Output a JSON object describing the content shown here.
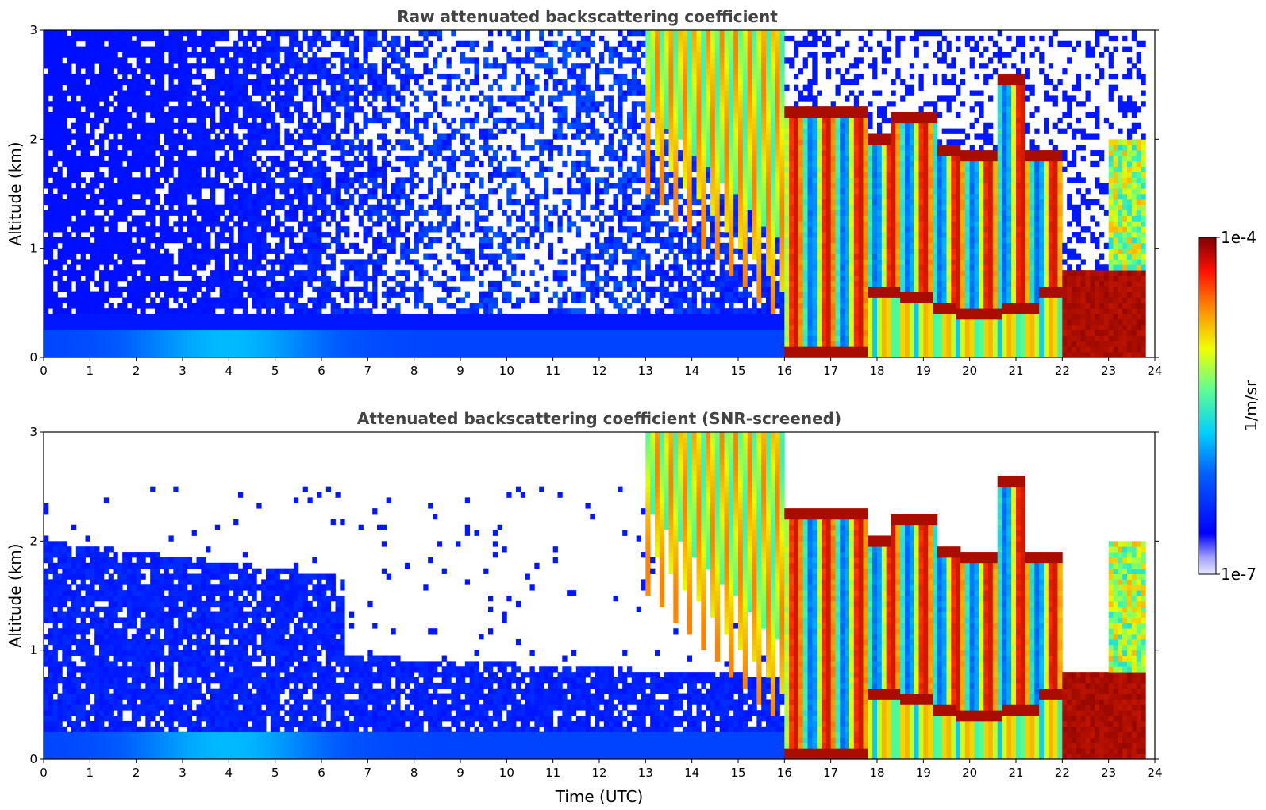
{
  "chart_data": [
    {
      "type": "heatmap",
      "title": "Raw attenuated backscattering coefficient",
      "xlabel": "",
      "ylabel": "Altitude (km)",
      "xlim": [
        0,
        24
      ],
      "ylim": [
        0,
        3
      ],
      "x_ticks": [
        "0",
        "1",
        "2",
        "3",
        "4",
        "5",
        "6",
        "7",
        "8",
        "9",
        "10",
        "11",
        "12",
        "13",
        "14",
        "15",
        "16",
        "17",
        "18",
        "19",
        "20",
        "21",
        "22",
        "23",
        "24"
      ],
      "y_ticks": [
        "0",
        "1",
        "2",
        "3"
      ],
      "colorscale": "jet",
      "zscale": "log",
      "zlim": [
        1e-07,
        0.0001
      ],
      "screened": false,
      "regions": [
        {
          "x": [
            0,
            13
          ],
          "y": [
            0,
            0.3
          ],
          "level": "high noise-floor, blue"
        },
        {
          "x": [
            0,
            13
          ],
          "y": [
            0.3,
            3
          ],
          "level": "noise, blue speckle"
        },
        {
          "x": [
            13,
            16
          ],
          "y": [
            0,
            3
          ],
          "level": "cirrus fall-streaks from 3 km, green-orange"
        },
        {
          "x": [
            16,
            17.8
          ],
          "y": [
            0,
            2.3
          ],
          "level": "dense cloud, orange-red"
        },
        {
          "x": [
            17.8,
            22
          ],
          "y": [
            0.3,
            2.3
          ],
          "level": "convective cloud towers, green-red"
        },
        {
          "x": [
            22,
            23.8
          ],
          "y": [
            0,
            0.8
          ],
          "level": "boundary layer, dark red"
        },
        {
          "x": [
            22,
            23.8
          ],
          "y": [
            0.8,
            2.1
          ],
          "level": "cloud tops, cyan-yellow"
        }
      ]
    },
    {
      "type": "heatmap",
      "title": "Attenuated backscattering coefficient (SNR-screened)",
      "xlabel": "Time (UTC)",
      "ylabel": "Altitude (km)",
      "xlim": [
        0,
        24
      ],
      "ylim": [
        0,
        3
      ],
      "x_ticks": [
        "0",
        "1",
        "2",
        "3",
        "4",
        "5",
        "6",
        "7",
        "8",
        "9",
        "10",
        "11",
        "12",
        "13",
        "14",
        "15",
        "16",
        "17",
        "18",
        "19",
        "20",
        "21",
        "22",
        "23",
        "24"
      ],
      "y_ticks": [
        "0",
        "1",
        "2",
        "3"
      ],
      "colorscale": "jet",
      "zscale": "log",
      "zlim": [
        1e-07,
        0.0001
      ],
      "screened": true,
      "regions": [
        {
          "x": [
            0,
            6.5
          ],
          "y": [
            0,
            2.0
          ],
          "level": "aerosol layer, blue"
        },
        {
          "x": [
            6.5,
            16
          ],
          "y": [
            0,
            0.9
          ],
          "level": "aerosol layer, blue"
        },
        {
          "x": [
            6.5,
            13
          ],
          "y": [
            0.9,
            3
          ],
          "level": "screened out (white)"
        },
        {
          "x": [
            13,
            16
          ],
          "y": [
            0.8,
            3
          ],
          "level": "cirrus fall-streaks, green-orange"
        },
        {
          "x": [
            16,
            17.8
          ],
          "y": [
            0,
            2.3
          ],
          "level": "dense cloud, orange-red"
        },
        {
          "x": [
            17.8,
            22
          ],
          "y": [
            0.3,
            2.3
          ],
          "level": "convective cloud towers, green-red"
        },
        {
          "x": [
            22,
            23.8
          ],
          "y": [
            0,
            0.8
          ],
          "level": "boundary layer, dark red"
        },
        {
          "x": [
            22,
            23.8
          ],
          "y": [
            0.8,
            2.1
          ],
          "level": "cloud tops, cyan-yellow"
        }
      ]
    }
  ],
  "colorbar": {
    "label": "1/m/sr",
    "max_label": "1e-4",
    "min_label": "1e-7"
  },
  "colors": {
    "title": "#444444",
    "jet": [
      "#000080",
      "#0000ff",
      "#0080ff",
      "#00ffff",
      "#80ff80",
      "#ffff00",
      "#ff8000",
      "#ff0000",
      "#800000"
    ]
  }
}
